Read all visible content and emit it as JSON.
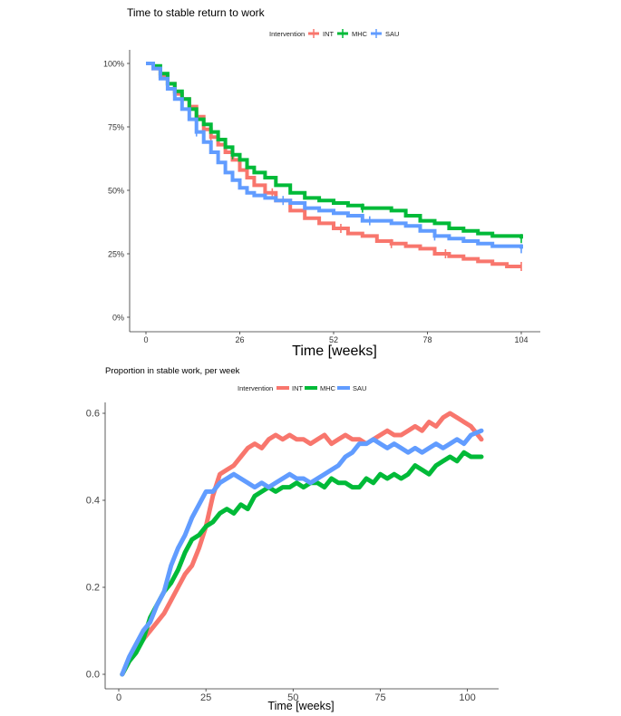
{
  "chart_data": [
    {
      "type": "line",
      "title": "Time to stable return to work",
      "xlabel": "Time [weeks]",
      "ylabel": "",
      "xlim": [
        0,
        104
      ],
      "ylim": [
        0,
        100
      ],
      "xticks": [
        0,
        26,
        52,
        78,
        104
      ],
      "xtick_labels": [
        "0",
        "26",
        "52",
        "78",
        "104"
      ],
      "yticks": [
        0,
        25,
        50,
        75,
        100
      ],
      "ytick_labels": [
        "0%",
        "25%",
        "50%",
        "75%",
        "100%"
      ],
      "legend": {
        "title": "Intervention",
        "position": "top"
      },
      "series": [
        {
          "name": "INT",
          "color": "#F8766D",
          "x": [
            0,
            2,
            4,
            6,
            8,
            10,
            12,
            14,
            16,
            18,
            20,
            22,
            24,
            26,
            28,
            30,
            33,
            36,
            40,
            44,
            48,
            52,
            56,
            60,
            64,
            68,
            72,
            76,
            80,
            84,
            88,
            92,
            96,
            100,
            104
          ],
          "y": [
            100,
            98,
            95,
            92,
            88,
            86,
            83,
            79,
            74,
            71,
            68,
            65,
            62,
            58,
            55,
            52,
            49,
            46,
            42,
            39,
            37,
            35,
            33,
            32,
            30,
            29,
            28,
            27,
            25,
            24,
            23,
            22,
            21,
            20,
            20
          ],
          "censor_x": [
            10,
            18,
            35,
            54,
            68,
            83,
            104
          ]
        },
        {
          "name": "MHC",
          "color": "#00BA38",
          "x": [
            0,
            2,
            4,
            6,
            8,
            10,
            12,
            14,
            16,
            18,
            20,
            22,
            24,
            26,
            28,
            30,
            33,
            36,
            40,
            44,
            48,
            52,
            56,
            60,
            64,
            68,
            72,
            76,
            80,
            84,
            88,
            92,
            96,
            100,
            104
          ],
          "y": [
            100,
            99,
            96,
            92,
            89,
            86,
            82,
            78,
            76,
            73,
            70,
            67,
            64,
            62,
            59,
            57,
            55,
            52,
            49,
            47,
            46,
            45,
            44,
            43,
            43,
            42,
            40,
            38,
            37,
            35,
            34,
            33,
            32,
            32,
            31
          ],
          "censor_x": [
            8,
            24,
            60,
            104
          ]
        },
        {
          "name": "SAU",
          "color": "#619CFF",
          "x": [
            0,
            2,
            4,
            6,
            8,
            10,
            12,
            14,
            16,
            18,
            20,
            22,
            24,
            26,
            28,
            30,
            33,
            36,
            40,
            44,
            48,
            52,
            56,
            60,
            64,
            68,
            72,
            76,
            80,
            84,
            88,
            92,
            96,
            100,
            104
          ],
          "y": [
            100,
            98,
            94,
            90,
            86,
            82,
            78,
            73,
            69,
            65,
            61,
            57,
            54,
            51,
            49,
            48,
            47,
            46,
            45,
            43,
            42,
            41,
            40,
            38,
            38,
            37,
            36,
            34,
            32,
            31,
            30,
            29,
            28,
            28,
            27
          ],
          "censor_x": [
            14,
            38,
            62,
            80,
            104
          ]
        }
      ]
    },
    {
      "type": "line",
      "title": "Proportion in stable work, per week",
      "xlabel": "Time [weeks]",
      "ylabel": "",
      "xlim": [
        0,
        104
      ],
      "ylim": [
        0,
        0.6
      ],
      "xticks": [
        0,
        25,
        50,
        75,
        100
      ],
      "xtick_labels": [
        "0",
        "25",
        "50",
        "75",
        "100"
      ],
      "yticks": [
        0,
        0.2,
        0.4,
        0.6
      ],
      "ytick_labels": [
        "0.0",
        "0.2",
        "0.4",
        "0.6"
      ],
      "legend": {
        "title": "Intervention",
        "position": "top"
      },
      "series": [
        {
          "name": "INT",
          "color": "#F8766D",
          "x": [
            1,
            3,
            5,
            7,
            9,
            11,
            13,
            15,
            17,
            19,
            21,
            23,
            25,
            27,
            29,
            31,
            33,
            35,
            37,
            39,
            41,
            43,
            45,
            47,
            49,
            51,
            53,
            55,
            57,
            59,
            61,
            63,
            65,
            67,
            69,
            71,
            73,
            75,
            77,
            79,
            81,
            83,
            85,
            87,
            89,
            91,
            93,
            95,
            97,
            99,
            101,
            104
          ],
          "y": [
            0.0,
            0.03,
            0.06,
            0.08,
            0.1,
            0.12,
            0.14,
            0.17,
            0.2,
            0.23,
            0.25,
            0.29,
            0.34,
            0.41,
            0.46,
            0.47,
            0.48,
            0.5,
            0.52,
            0.53,
            0.52,
            0.54,
            0.55,
            0.54,
            0.55,
            0.54,
            0.54,
            0.53,
            0.54,
            0.55,
            0.53,
            0.54,
            0.55,
            0.54,
            0.54,
            0.53,
            0.54,
            0.55,
            0.56,
            0.55,
            0.55,
            0.56,
            0.57,
            0.56,
            0.58,
            0.57,
            0.59,
            0.6,
            0.59,
            0.58,
            0.57,
            0.54
          ]
        },
        {
          "name": "MHC",
          "color": "#00BA38",
          "x": [
            1,
            3,
            5,
            7,
            9,
            11,
            13,
            15,
            17,
            19,
            21,
            23,
            25,
            27,
            29,
            31,
            33,
            35,
            37,
            39,
            41,
            43,
            45,
            47,
            49,
            51,
            53,
            55,
            57,
            59,
            61,
            63,
            65,
            67,
            69,
            71,
            73,
            75,
            77,
            79,
            81,
            83,
            85,
            87,
            89,
            91,
            93,
            95,
            97,
            99,
            101,
            104
          ],
          "y": [
            0.0,
            0.03,
            0.05,
            0.08,
            0.13,
            0.16,
            0.19,
            0.21,
            0.24,
            0.28,
            0.31,
            0.32,
            0.34,
            0.35,
            0.37,
            0.38,
            0.37,
            0.39,
            0.38,
            0.41,
            0.42,
            0.43,
            0.42,
            0.43,
            0.43,
            0.44,
            0.43,
            0.44,
            0.44,
            0.43,
            0.45,
            0.44,
            0.44,
            0.43,
            0.43,
            0.45,
            0.44,
            0.46,
            0.45,
            0.46,
            0.45,
            0.46,
            0.48,
            0.47,
            0.46,
            0.48,
            0.49,
            0.5,
            0.49,
            0.51,
            0.5,
            0.5
          ]
        },
        {
          "name": "SAU",
          "color": "#619CFF",
          "x": [
            1,
            3,
            5,
            7,
            9,
            11,
            13,
            15,
            17,
            19,
            21,
            23,
            25,
            27,
            29,
            31,
            33,
            35,
            37,
            39,
            41,
            43,
            45,
            47,
            49,
            51,
            53,
            55,
            57,
            59,
            61,
            63,
            65,
            67,
            69,
            71,
            73,
            75,
            77,
            79,
            81,
            83,
            85,
            87,
            89,
            91,
            93,
            95,
            97,
            99,
            101,
            104
          ],
          "y": [
            0.0,
            0.04,
            0.07,
            0.1,
            0.12,
            0.16,
            0.19,
            0.25,
            0.29,
            0.32,
            0.36,
            0.39,
            0.42,
            0.42,
            0.44,
            0.45,
            0.46,
            0.45,
            0.44,
            0.43,
            0.44,
            0.43,
            0.44,
            0.45,
            0.46,
            0.45,
            0.45,
            0.44,
            0.45,
            0.46,
            0.47,
            0.48,
            0.5,
            0.51,
            0.53,
            0.53,
            0.54,
            0.53,
            0.52,
            0.53,
            0.52,
            0.51,
            0.52,
            0.51,
            0.52,
            0.53,
            0.52,
            0.53,
            0.54,
            0.53,
            0.55,
            0.56
          ]
        }
      ]
    }
  ]
}
